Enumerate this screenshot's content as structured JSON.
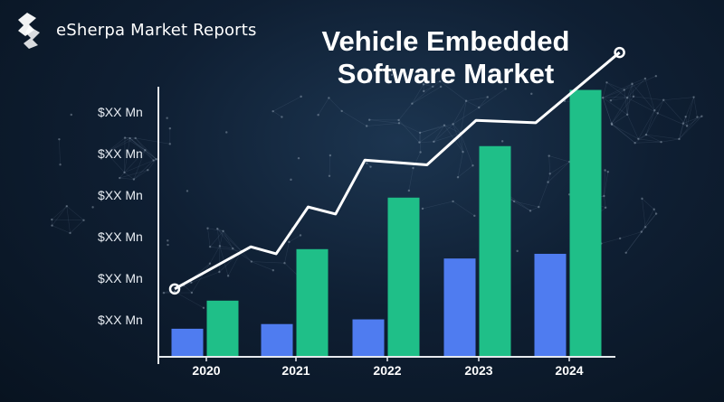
{
  "brand": {
    "name": "eSherpa Market Reports",
    "logo_icon": "esherpa-logo-icon"
  },
  "colors": {
    "background": "#0f1f33",
    "bar_blue": "#4f7cf0",
    "bar_green": "#1fbf88",
    "trend_line": "#ffffff",
    "axis": "#e6e9ee",
    "text": "#ffffff"
  },
  "chart_data": {
    "type": "bar",
    "title": "Vehicle Embedded Software Market",
    "xlabel": "",
    "ylabel": "",
    "categories": [
      "2020",
      "2021",
      "2022",
      "2023",
      "2024"
    ],
    "y_tick_labels": [
      "$XX Mn",
      "$XX Mn",
      "$XX Mn",
      "$XX Mn",
      "$XX Mn",
      "$XX Mn"
    ],
    "ylim": [
      0,
      6
    ],
    "series": [
      {
        "values": [
          0.6,
          0.7,
          0.8,
          2.1,
          2.2
        ]
      },
      {
        "values": [
          1.2,
          2.3,
          3.4,
          4.5,
          5.7
        ]
      }
    ],
    "trend_line": [
      {
        "x": 0.0,
        "y": 1.45
      },
      {
        "x": 0.85,
        "y": 2.35
      },
      {
        "x": 1.13,
        "y": 2.2
      },
      {
        "x": 1.48,
        "y": 3.2
      },
      {
        "x": 1.78,
        "y": 3.05
      },
      {
        "x": 2.1,
        "y": 4.2
      },
      {
        "x": 2.78,
        "y": 4.1
      },
      {
        "x": 3.32,
        "y": 5.05
      },
      {
        "x": 3.98,
        "y": 5.0
      },
      {
        "x": 4.6,
        "y": 6.5
      }
    ],
    "grid": false,
    "legend": "none"
  }
}
